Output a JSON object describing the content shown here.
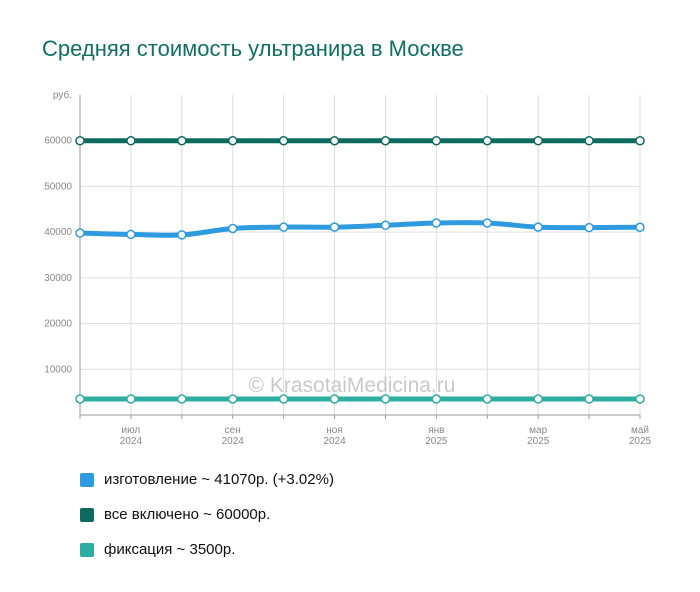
{
  "chart_data": {
    "type": "line",
    "title": "Средняя стоимость ультранира в Москве",
    "ylabel": "руб.",
    "ylim": [
      0,
      70000
    ],
    "yticks": [
      10000,
      20000,
      30000,
      40000,
      50000,
      60000
    ],
    "x_month_count": 12,
    "x_tick_labels": [
      {
        "index": 1,
        "month": "июл",
        "year": "2024"
      },
      {
        "index": 3,
        "month": "сен",
        "year": "2024"
      },
      {
        "index": 5,
        "month": "ноя",
        "year": "2024"
      },
      {
        "index": 7,
        "month": "янв",
        "year": "2025"
      },
      {
        "index": 9,
        "month": "мар",
        "year": "2025"
      },
      {
        "index": 11,
        "month": "май",
        "year": "2025"
      }
    ],
    "grid": true,
    "watermark": "© KrasotaiMedicina.ru",
    "series": [
      {
        "name": "изготовление",
        "color": "#2e9be0",
        "values": [
          39800,
          39500,
          39400,
          40800,
          41100,
          41100,
          41500,
          42000,
          42000,
          41100,
          41000,
          41070
        ]
      },
      {
        "name": "все включено",
        "color": "#0c6b5e",
        "values": [
          60000,
          60000,
          60000,
          60000,
          60000,
          60000,
          60000,
          60000,
          60000,
          60000,
          60000,
          60000
        ]
      },
      {
        "name": "фиксация",
        "color": "#2eada1",
        "values": [
          3500,
          3500,
          3500,
          3500,
          3500,
          3500,
          3500,
          3500,
          3500,
          3500,
          3500,
          3500
        ]
      }
    ]
  },
  "legend": [
    {
      "label": "изготовление ~ 41070р. (+3.02%)",
      "color": "#2e9be0"
    },
    {
      "label": "все включено ~ 60000р.",
      "color": "#0c6b5e"
    },
    {
      "label": "фиксация ~ 3500р.",
      "color": "#2eada1"
    }
  ]
}
